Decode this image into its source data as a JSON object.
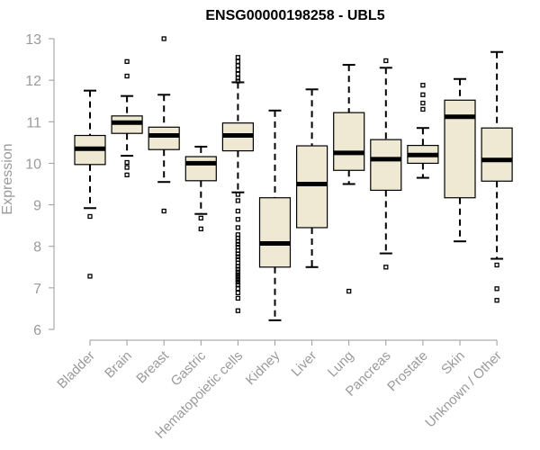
{
  "chart_data": {
    "type": "boxplot",
    "title": "ENSG00000198258 - UBL5",
    "xlabel": "",
    "ylabel": "Expression",
    "ylim": [
      6,
      13
    ],
    "yticks": [
      6,
      7,
      8,
      9,
      10,
      11,
      12,
      13
    ],
    "grid": false,
    "colors": {
      "box_fill": "#efe8d2",
      "box_stroke": "#000000",
      "axis": "#9a9a9a"
    },
    "categories": [
      "Bladder",
      "Brain",
      "Breast",
      "Gastric",
      "Hematopoietic cells",
      "Kidney",
      "Liver",
      "Lung",
      "Pancreas",
      "Prostate",
      "Skin",
      "Unknown / Other"
    ],
    "boxes": [
      {
        "category": "Bladder",
        "whisker_low": 8.92,
        "q1": 9.97,
        "median": 10.35,
        "q3": 10.67,
        "whisker_high": 11.75,
        "outliers": [
          8.72,
          7.28
        ]
      },
      {
        "category": "Brain",
        "whisker_low": 10.18,
        "q1": 10.72,
        "median": 10.98,
        "q3": 11.14,
        "whisker_high": 11.62,
        "outliers": [
          12.45,
          12.1,
          10.02,
          9.9,
          9.72
        ]
      },
      {
        "category": "Breast",
        "whisker_low": 9.55,
        "q1": 10.33,
        "median": 10.67,
        "q3": 10.87,
        "whisker_high": 11.65,
        "outliers": [
          13.0,
          8.85
        ]
      },
      {
        "category": "Gastric",
        "whisker_low": 8.78,
        "q1": 9.58,
        "median": 10.0,
        "q3": 10.16,
        "whisker_high": 10.4,
        "outliers": [
          8.68,
          8.42
        ]
      },
      {
        "category": "Hematopoietic cells",
        "whisker_low": 9.3,
        "q1": 10.3,
        "median": 10.67,
        "q3": 10.97,
        "whisker_high": 11.95,
        "outliers": [
          12.55,
          12.45,
          12.35,
          12.25,
          12.15,
          12.05,
          11.98,
          9.25,
          9.1,
          8.85,
          8.65,
          8.45,
          8.28,
          8.2,
          8.12,
          8.05,
          7.98,
          7.9,
          7.82,
          7.75,
          7.68,
          7.6,
          7.52,
          7.45,
          7.38,
          7.32,
          7.26,
          7.2,
          7.14,
          7.08,
          6.98,
          6.88,
          6.75,
          6.45
        ]
      },
      {
        "category": "Kidney",
        "whisker_low": 6.22,
        "q1": 7.5,
        "median": 8.07,
        "q3": 9.17,
        "whisker_high": 11.27,
        "outliers": []
      },
      {
        "category": "Liver",
        "whisker_low": 7.5,
        "q1": 8.45,
        "median": 9.5,
        "q3": 10.42,
        "whisker_high": 11.78,
        "outliers": []
      },
      {
        "category": "Lung",
        "whisker_low": 9.5,
        "q1": 9.83,
        "median": 10.25,
        "q3": 11.22,
        "whisker_high": 12.37,
        "outliers": [
          6.92
        ]
      },
      {
        "category": "Pancreas",
        "whisker_low": 7.83,
        "q1": 9.35,
        "median": 10.1,
        "q3": 10.57,
        "whisker_high": 12.3,
        "outliers": [
          12.47,
          7.5
        ]
      },
      {
        "category": "Prostate",
        "whisker_low": 9.65,
        "q1": 10.0,
        "median": 10.2,
        "q3": 10.43,
        "whisker_high": 10.85,
        "outliers": [
          11.88,
          11.65,
          11.45,
          11.3
        ]
      },
      {
        "category": "Skin",
        "whisker_low": 8.12,
        "q1": 9.17,
        "median": 11.12,
        "q3": 11.52,
        "whisker_high": 12.03,
        "outliers": []
      },
      {
        "category": "Unknown / Other",
        "whisker_low": 7.7,
        "q1": 9.57,
        "median": 10.08,
        "q3": 10.85,
        "whisker_high": 12.68,
        "outliers": [
          7.55,
          6.98,
          6.7
        ]
      }
    ]
  }
}
